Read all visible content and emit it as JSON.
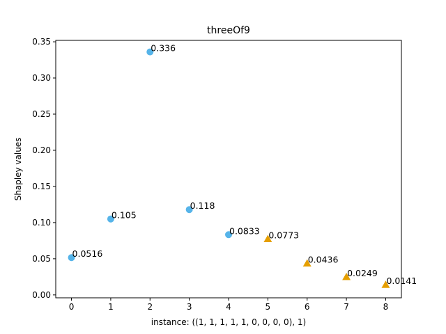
{
  "chart_data": {
    "type": "scatter",
    "title": "threeOf9",
    "xlabel": "instance: ((1, 1, 1, 1, 1, 0, 0, 0, 0), 1)",
    "ylabel": "Shapley values",
    "xlim": [
      -0.4,
      8.4
    ],
    "ylim": [
      -0.004,
      0.352
    ],
    "xticks": [
      0,
      1,
      2,
      3,
      4,
      5,
      6,
      7,
      8
    ],
    "yticks": [
      0.0,
      0.05,
      0.1,
      0.15,
      0.2,
      0.25,
      0.3,
      0.35
    ],
    "ytick_labels": [
      "0.00",
      "0.05",
      "0.10",
      "0.15",
      "0.20",
      "0.25",
      "0.30",
      "0.35"
    ],
    "grid": false,
    "series": [
      {
        "marker": "circle",
        "color": "#56B4E9",
        "x": [
          0,
          1,
          2,
          3,
          4
        ],
        "y": [
          0.0516,
          0.105,
          0.336,
          0.118,
          0.0833
        ],
        "labels": [
          "0.0516",
          "0.105",
          "0.336",
          "0.118",
          "0.0833"
        ]
      },
      {
        "marker": "triangle",
        "color": "#E69F00",
        "x": [
          5,
          6,
          7,
          8
        ],
        "y": [
          0.0773,
          0.0436,
          0.0249,
          0.0141
        ],
        "labels": [
          "0.0773",
          "0.0436",
          "0.0249",
          "0.0141"
        ]
      }
    ]
  }
}
